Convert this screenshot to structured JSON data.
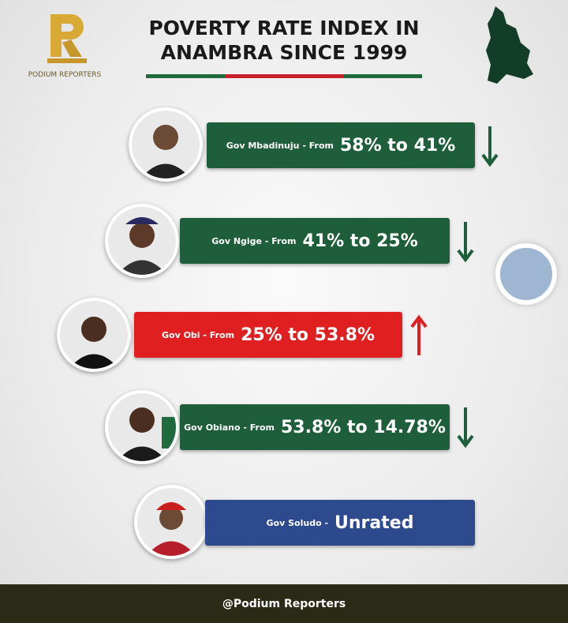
{
  "header": {
    "brand": "PODIUM REPORTERS",
    "title": "POVERTY RATE INDEX IN ANAMBRA SINCE 1999"
  },
  "rows": [
    {
      "label": "Gov Mbadinuju - From",
      "value": "58% to 41%"
    },
    {
      "label": "Gov Ngige - From",
      "value": "41% to 25%"
    },
    {
      "label": "Gov Obi - From",
      "value": "25% to 53.8%"
    },
    {
      "label": "Gov Obiano - From",
      "value": "53.8% to 14.78%"
    },
    {
      "label": "Gov Soludo -",
      "value": "Unrated"
    }
  ],
  "footer": {
    "handle": "@Podium Reporters"
  }
}
